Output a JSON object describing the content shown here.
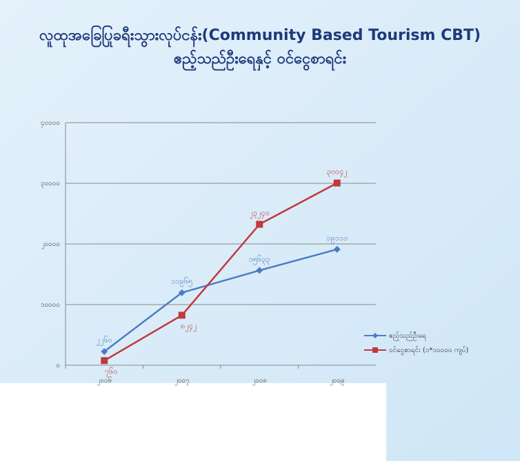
{
  "chart_data": {
    "type": "line",
    "title": "လူထုအခြေပြုခရီးသွားလုပ်ငန်း(Community Based Tourism  CBT)",
    "subtitle": "ဧည့်သည်ဦးရေနှင့် ဝင်ငွေစာရင်း",
    "categories": [
      "၂၀၀၆",
      "၂၀၀၇",
      "၂၀၀၈",
      "၂၀၀၉"
    ],
    "ylim": [
      0,
      40000
    ],
    "yticks": [
      {
        "value": 0,
        "label": "၀"
      },
      {
        "value": 10000,
        "label": "၁၀၀၀၀"
      },
      {
        "value": 20000,
        "label": "၂၀၀၀၀"
      },
      {
        "value": 30000,
        "label": "၃၀၀၀၀"
      },
      {
        "value": 40000,
        "label": "၄၀၀၀၀"
      }
    ],
    "grid": true,
    "legend": "right",
    "series": [
      {
        "name": "ဧည့်သည်ဦးရေ",
        "color": "#4a7cc4",
        "marker": "diamond",
        "values": [
          2260,
          11965,
          15633,
          19111
        ],
        "value_labels": [
          "၂၂၆၀",
          "၁၁၉၆၅",
          "၁၅၆၃၃",
          "၁၉၁၁၁"
        ]
      },
      {
        "name": "ဝင်ငွေစာရင်း (၁*၁၀၀၀၀ ကျပ်)",
        "color": "#c0393b",
        "marker": "square",
        "values": [
          760,
          8242,
          23240,
          30042
        ],
        "value_labels": [
          "၇၆၀",
          "၈၂၄၂",
          "၂၃၂၄၀",
          "၃၀၀၄၂"
        ]
      }
    ]
  }
}
